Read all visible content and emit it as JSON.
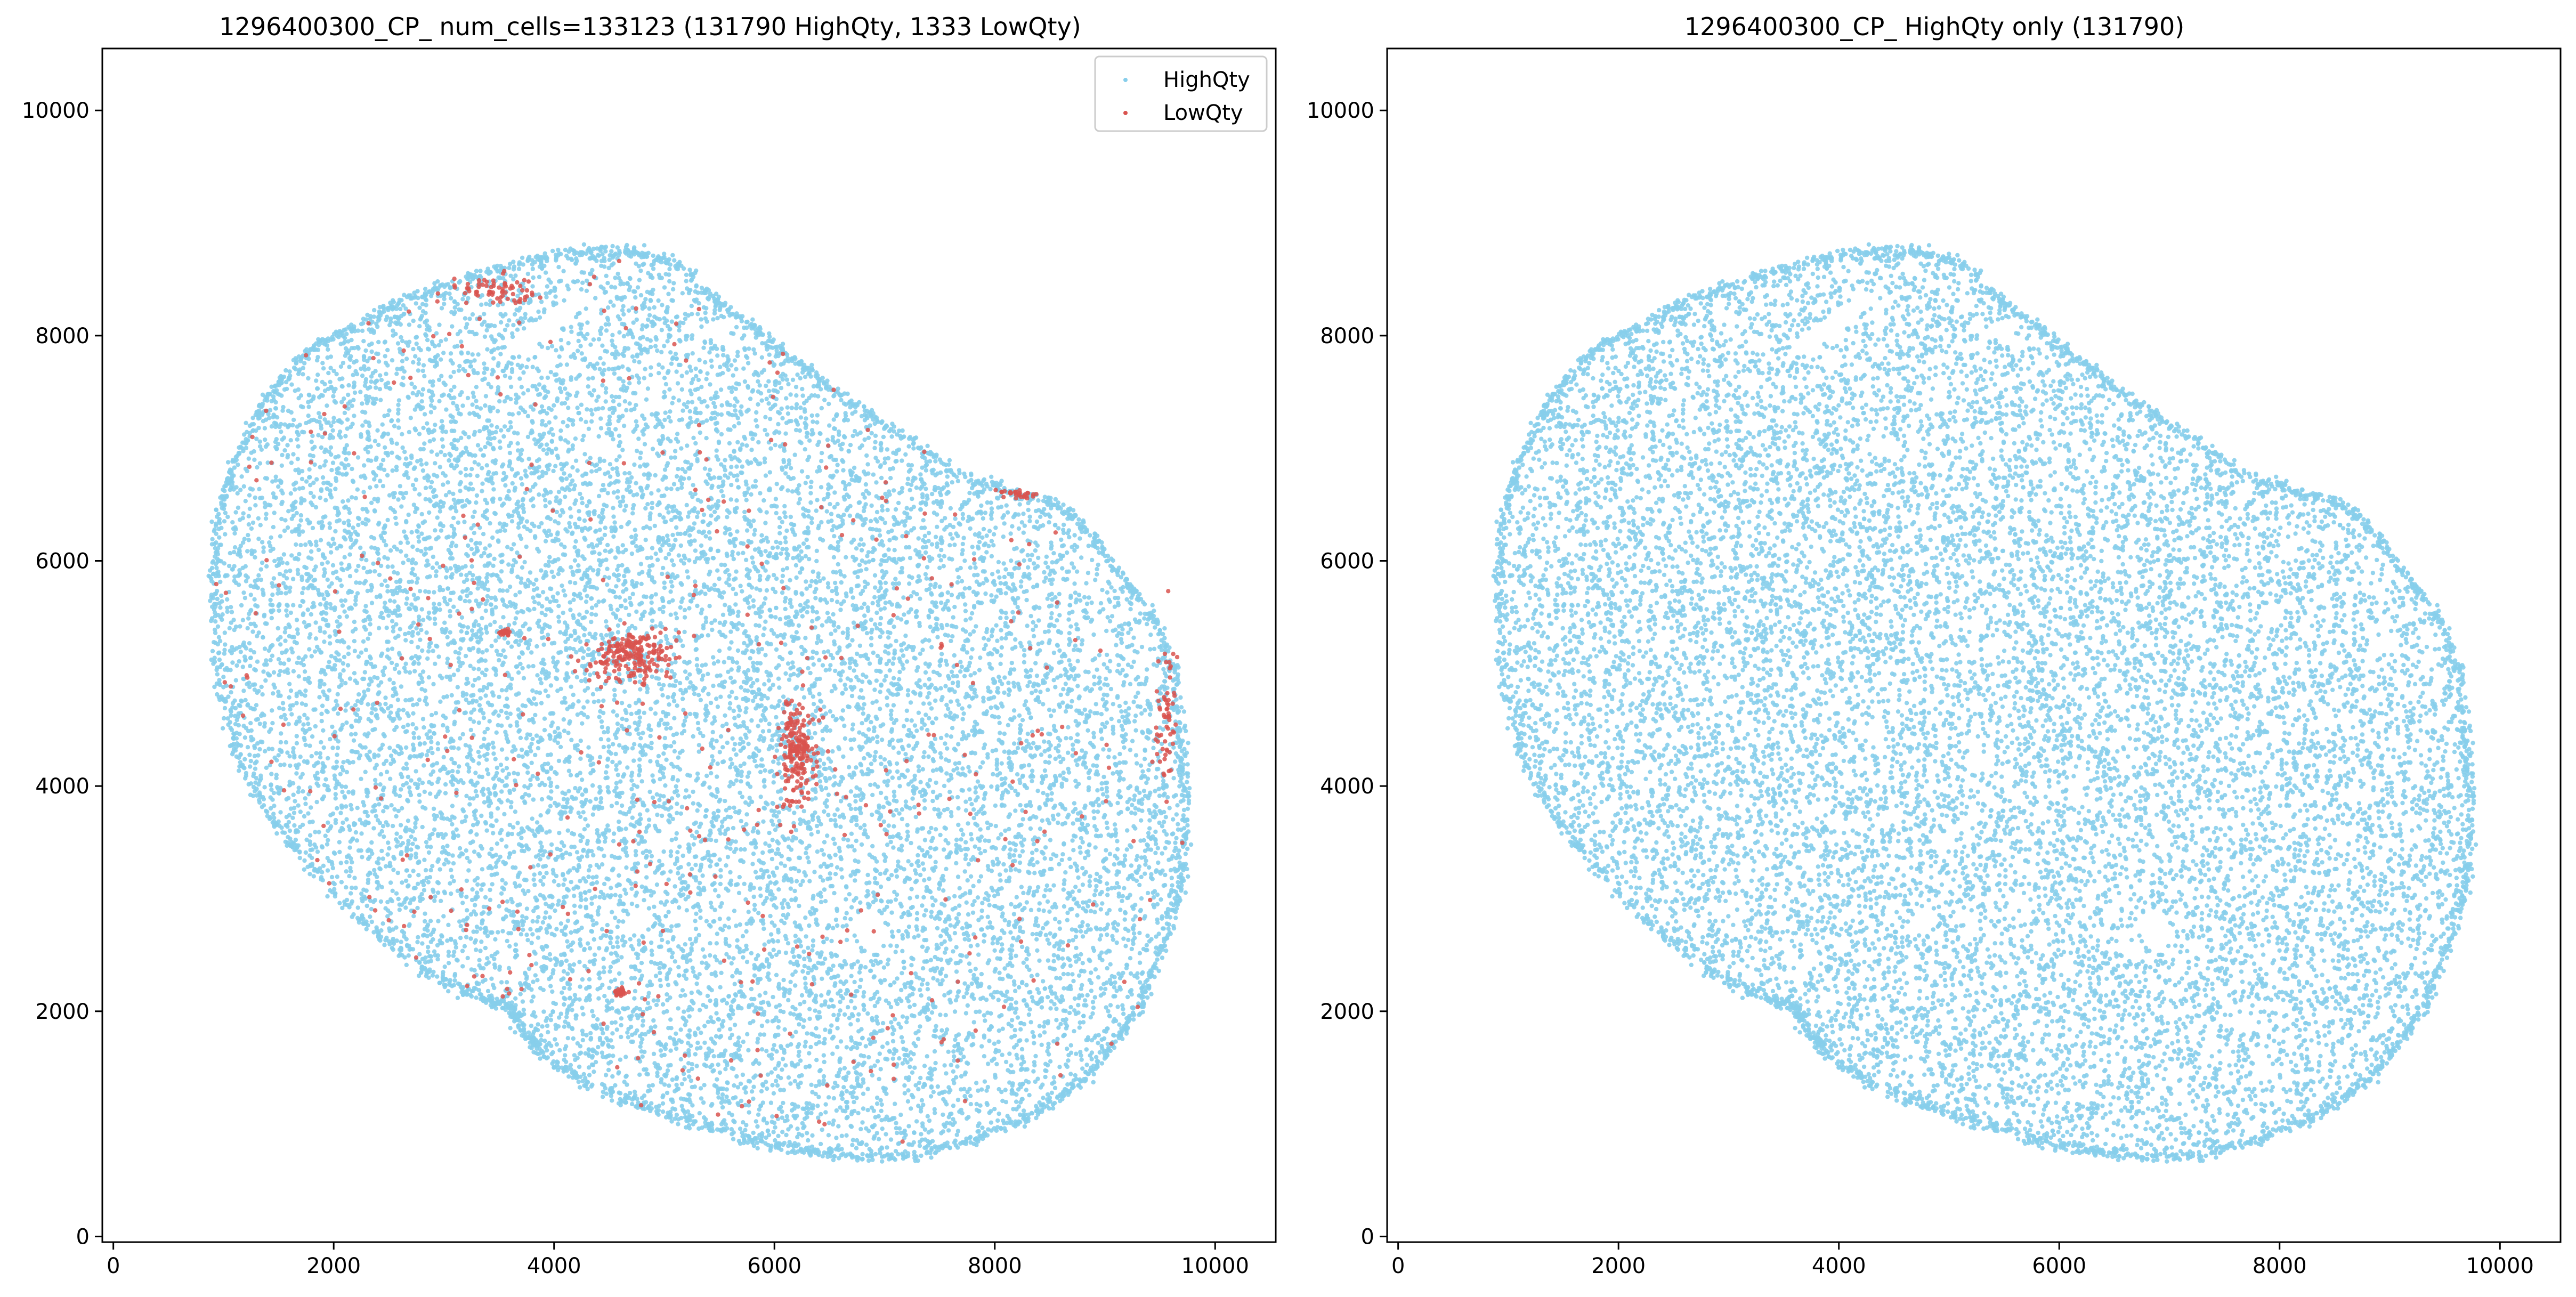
{
  "colors": {
    "highqty": "#87ceeb",
    "lowqty": "#d9534f",
    "axes": "#000000",
    "background": "#ffffff"
  },
  "chart_data": [
    {
      "type": "scatter",
      "title": "1296400300_CP_ num_cells=133123 (131790 HighQty, 1333 LowQty)",
      "xlabel": "",
      "ylabel": "",
      "xlim": [
        -100,
        10550
      ],
      "ylim": [
        -50,
        10550
      ],
      "x_ticks": [
        0,
        2000,
        4000,
        6000,
        8000,
        10000
      ],
      "y_ticks": [
        0,
        2000,
        4000,
        6000,
        8000,
        10000
      ],
      "x_tick_labels": [
        "0",
        "2000",
        "4000",
        "6000",
        "8000",
        "10000"
      ],
      "y_tick_labels": [
        "0",
        "2000",
        "4000",
        "6000",
        "8000",
        "10000"
      ],
      "grid": false,
      "legend": {
        "placement": "top-right",
        "entries": [
          "HighQty",
          "LowQty"
        ]
      },
      "tissue_outline": [
        [
          900,
          5800
        ],
        [
          950,
          6400
        ],
        [
          1100,
          6900
        ],
        [
          1350,
          7400
        ],
        [
          1700,
          7800
        ],
        [
          2100,
          8050
        ],
        [
          2600,
          8300
        ],
        [
          3100,
          8480
        ],
        [
          3700,
          8650
        ],
        [
          4200,
          8750
        ],
        [
          4700,
          8760
        ],
        [
          5100,
          8650
        ],
        [
          5500,
          8300
        ],
        [
          5900,
          8000
        ],
        [
          6300,
          7700
        ],
        [
          6700,
          7400
        ],
        [
          7200,
          7100
        ],
        [
          7700,
          6750
        ],
        [
          8200,
          6600
        ],
        [
          8600,
          6500
        ],
        [
          8900,
          6200
        ],
        [
          9200,
          5800
        ],
        [
          9500,
          5400
        ],
        [
          9650,
          4900
        ],
        [
          9700,
          4300
        ],
        [
          9750,
          3700
        ],
        [
          9700,
          3100
        ],
        [
          9500,
          2500
        ],
        [
          9300,
          2000
        ],
        [
          9000,
          1600
        ],
        [
          8700,
          1300
        ],
        [
          8300,
          1050
        ],
        [
          7800,
          850
        ],
        [
          7300,
          730
        ],
        [
          6800,
          700
        ],
        [
          6300,
          760
        ],
        [
          5800,
          850
        ],
        [
          5300,
          1000
        ],
        [
          4800,
          1150
        ],
        [
          4300,
          1350
        ],
        [
          3900,
          1600
        ],
        [
          3700,
          1850
        ],
        [
          3600,
          2050
        ],
        [
          3400,
          2100
        ],
        [
          3000,
          2250
        ],
        [
          2500,
          2600
        ],
        [
          2000,
          3050
        ],
        [
          1500,
          3600
        ],
        [
          1150,
          4200
        ],
        [
          950,
          4900
        ]
      ],
      "lowqty_clusters": [
        {
          "center": [
            4700,
            5150
          ],
          "spread": [
            360,
            220
          ],
          "count": 220
        },
        {
          "center": [
            6200,
            4300
          ],
          "spread": [
            160,
            420
          ],
          "count": 200
        },
        {
          "center": [
            3550,
            5360
          ],
          "spread": [
            50,
            40
          ],
          "count": 25
        },
        {
          "center": [
            4600,
            2170
          ],
          "spread": [
            60,
            40
          ],
          "count": 25
        },
        {
          "center": [
            3500,
            8400
          ],
          "spread": [
            380,
            130
          ],
          "count": 70
        },
        {
          "center": [
            9550,
            4600
          ],
          "spread": [
            90,
            600
          ],
          "count": 60
        },
        {
          "center": [
            8200,
            6600
          ],
          "spread": [
            200,
            40
          ],
          "count": 30
        }
      ]
    },
    {
      "type": "scatter",
      "title": "1296400300_CP_ HighQty only (131790)",
      "xlabel": "",
      "ylabel": "",
      "xlim": [
        -100,
        10550
      ],
      "ylim": [
        -50,
        10550
      ],
      "x_ticks": [
        0,
        2000,
        4000,
        6000,
        8000,
        10000
      ],
      "y_ticks": [
        0,
        2000,
        4000,
        6000,
        8000,
        10000
      ],
      "x_tick_labels": [
        "0",
        "2000",
        "4000",
        "6000",
        "8000",
        "10000"
      ],
      "y_tick_labels": [
        "0",
        "2000",
        "4000",
        "6000",
        "8000",
        "10000"
      ],
      "grid": false,
      "series": [
        {
          "name": "HighQty"
        }
      ]
    }
  ],
  "legend": {
    "highqty_label": "HighQty",
    "lowqty_label": "LowQty"
  }
}
